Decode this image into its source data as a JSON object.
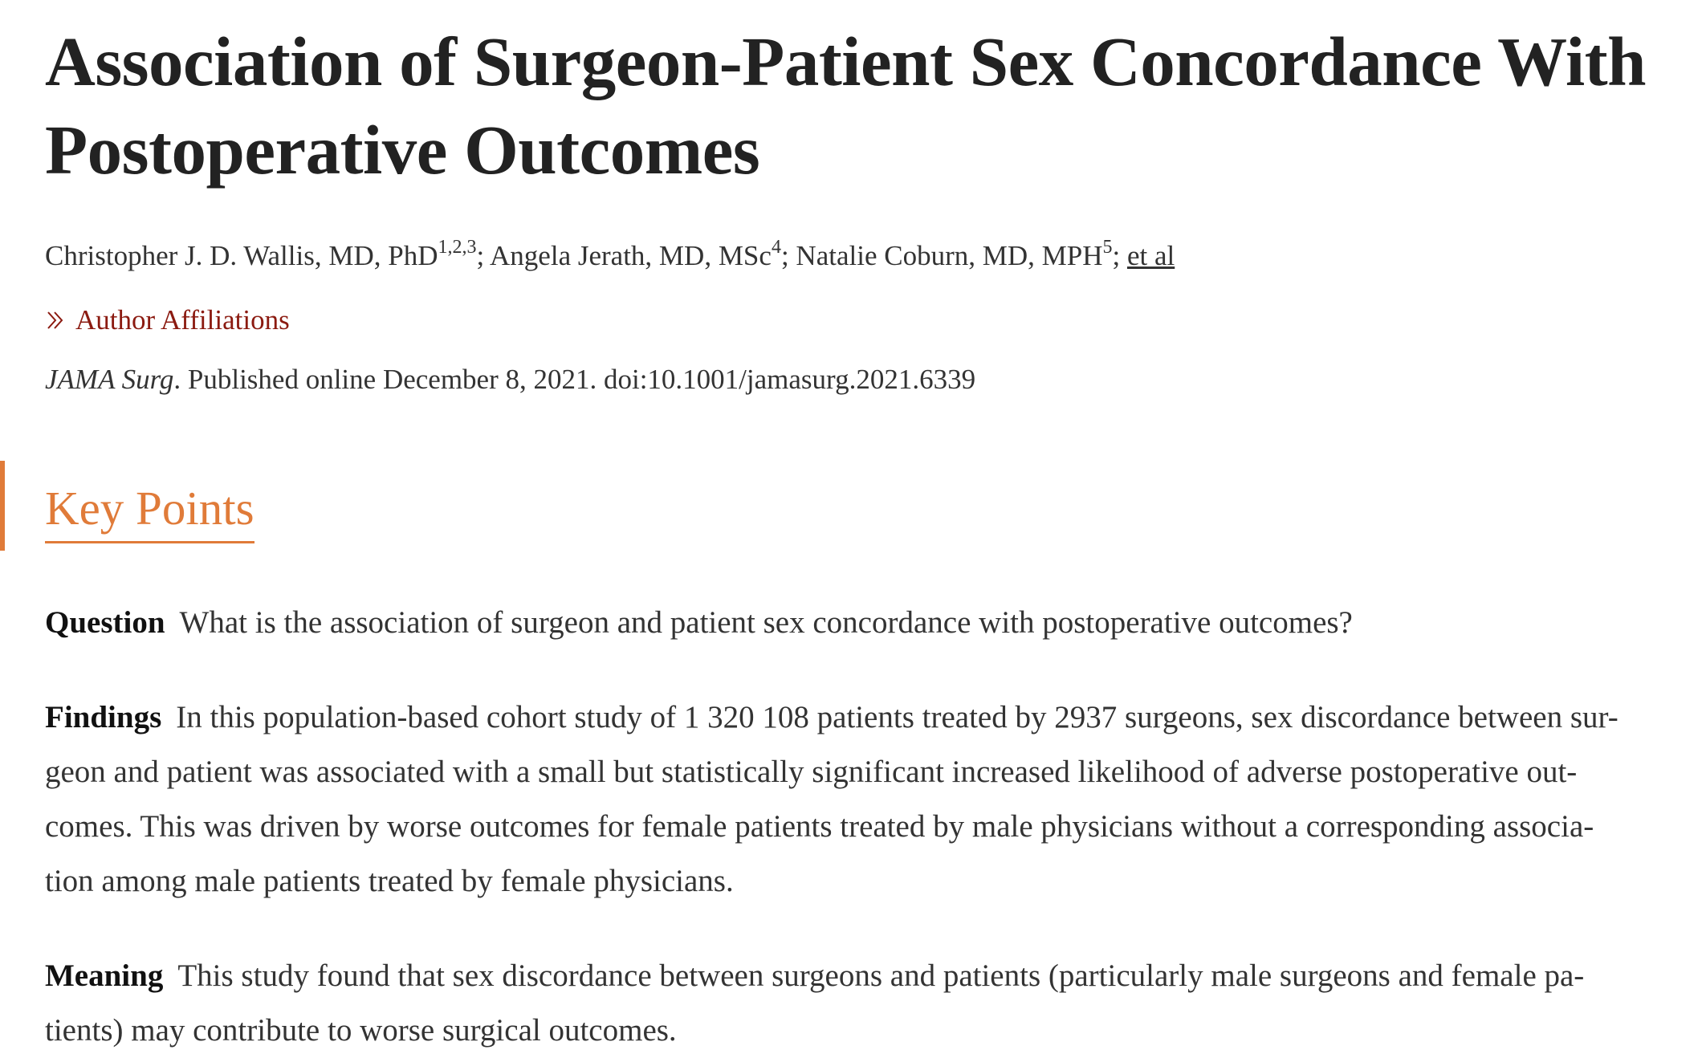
{
  "article": {
    "title_line1": "Association of Surgeon-Patient Sex Concordance With",
    "title_line2": "Postoperative Outcomes",
    "authors": [
      {
        "name": "Christopher J. D. Wallis, MD, PhD",
        "sup": "1,2,3"
      },
      {
        "name": "Angela Jerath, MD, MSc",
        "sup": "4"
      },
      {
        "name": "Natalie Coburn, MD, MPH",
        "sup": "5"
      }
    ],
    "author_separator": "; ",
    "et_al": "et al",
    "affiliations_link": "Author Affiliations",
    "citation": {
      "journal": "JAMA Surg",
      "rest": ". Published online December 8, 2021. doi:10.1001/jamasurg.2021.6339"
    }
  },
  "key_points": {
    "heading": "Key Points",
    "question": {
      "label": "Question",
      "text": "What is the association of surgeon and patient sex concordance with postoperative outcomes?"
    },
    "findings": {
      "label": "Findings",
      "line1": "In this population-based cohort study of 1 320 108 patients treated by 2937 surgeons, sex discordance between sur-",
      "line2": "geon and patient was associated with a small but statistically significant increased likelihood of adverse postoperative out-",
      "line3": "comes. This was driven by worse outcomes for female patients treated by male physicians without a corresponding associa-",
      "line4": "tion among male patients treated by female physicians."
    },
    "meaning": {
      "label": "Meaning",
      "line1": "This study found that sex discordance between surgeons and patients (particularly male surgeons and female pa-",
      "line2": "tients) may contribute to worse surgical outcomes."
    }
  },
  "icons": {
    "affiliations": "double-chevron-right-icon"
  },
  "colors": {
    "accent": "#e07b39",
    "link": "#8b1a10",
    "text": "#222222"
  }
}
